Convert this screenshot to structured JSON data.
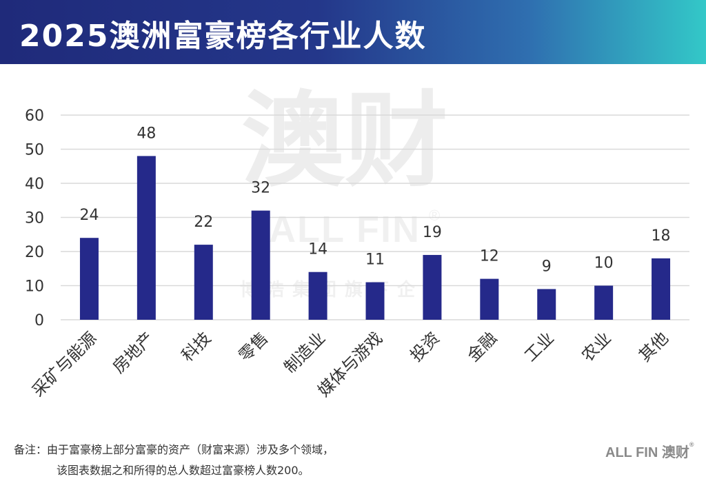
{
  "header": {
    "title": "2025澳洲富豪榜各行业人数"
  },
  "watermark": {
    "main": "澳财",
    "en": "ALL FIN",
    "reg": "®",
    "sub": "博浩集团旗下企业"
  },
  "footer": {
    "note_line1": "备注：由于富豪榜上部分富豪的资产（财富来源）涉及多个领域，",
    "note_line2": "该图表数据之和所得的总人数超过富豪榜人数200。",
    "logo": "ALL FIN 澳财",
    "logo_reg": "®"
  },
  "colors": {
    "bar": "#25298a",
    "grid": "#d9d9d9",
    "text": "#333333"
  },
  "chart_data": {
    "type": "bar",
    "title": "2025澳洲富豪榜各行业人数",
    "categories": [
      "采矿与能源",
      "房地产",
      "科技",
      "零售",
      "制造业",
      "媒体与游戏",
      "投资",
      "金融",
      "工业",
      "农业",
      "其他"
    ],
    "values": [
      24,
      48,
      22,
      32,
      14,
      11,
      19,
      12,
      9,
      10,
      18
    ],
    "ylim": [
      0,
      60
    ],
    "yticks": [
      0,
      10,
      20,
      30,
      40,
      50,
      60
    ],
    "grid": true,
    "legend": "none"
  }
}
